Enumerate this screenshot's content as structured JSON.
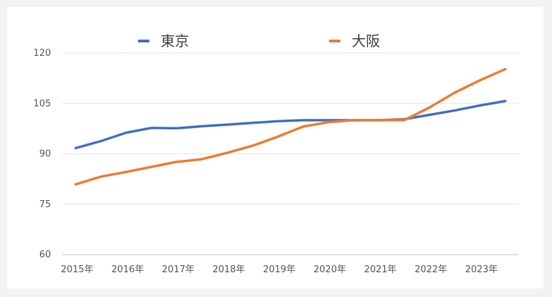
{
  "chart_data": {
    "type": "line",
    "title": "",
    "xlabel": "",
    "ylabel": "",
    "legend_position": "top",
    "grid": "horizontal",
    "x": [
      "2015年",
      "2016年",
      "2017年",
      "2018年",
      "2019年",
      "2020年",
      "2021年",
      "2022年",
      "2023年"
    ],
    "x_tick_labels": [
      "2015年",
      "2016年",
      "2017年",
      "2018年",
      "2019年",
      "2020年",
      "2021年",
      "2022年",
      "2023年"
    ],
    "ylim": [
      60,
      120
    ],
    "y_ticks": [
      60,
      75,
      90,
      105,
      120
    ],
    "series": [
      {
        "name": "東京",
        "color": "#4472c4",
        "x": [
          2015,
          2015.5,
          2016,
          2016.5,
          2017,
          2017.5,
          2018,
          2018.5,
          2019,
          2019.5,
          2020,
          2020.5,
          2021,
          2021.5,
          2022,
          2022.5,
          2023,
          2023.5
        ],
        "values": [
          91.7,
          93.8,
          96.3,
          97.7,
          97.6,
          98.2,
          98.7,
          99.2,
          99.7,
          100.0,
          100.0,
          100.0,
          100.0,
          100.3,
          101.6,
          102.9,
          104.4,
          105.7
        ]
      },
      {
        "name": "大阪",
        "color": "#ed7d31",
        "x": [
          2015,
          2015.5,
          2016,
          2016.5,
          2017,
          2017.5,
          2018,
          2018.5,
          2019,
          2019.5,
          2020,
          2020.5,
          2021,
          2021.5,
          2022,
          2022.5,
          2023,
          2023.5
        ],
        "values": [
          80.9,
          83.2,
          84.6,
          86.1,
          87.6,
          88.4,
          90.3,
          92.4,
          95.1,
          98.1,
          99.4,
          100.0,
          100.0,
          100.0,
          103.8,
          108.2,
          111.9,
          115.2
        ]
      }
    ]
  }
}
